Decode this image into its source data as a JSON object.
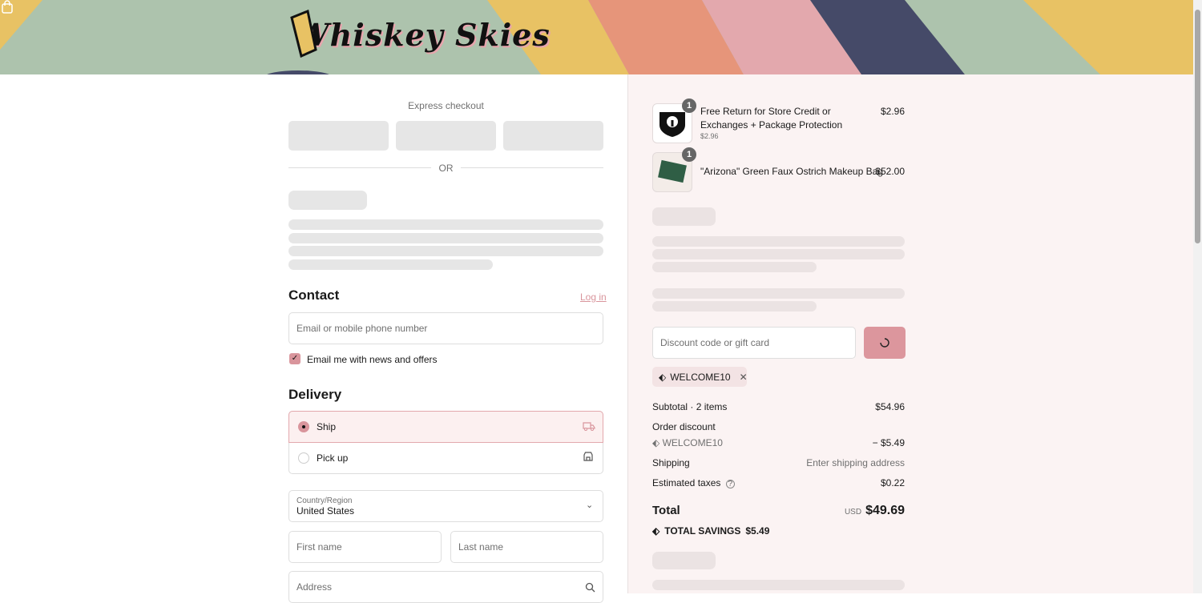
{
  "header": {
    "brand": "Whiskey Skies",
    "cart_icon": "shopping-bag-icon",
    "colors": {
      "sage": "#adc3ad",
      "yellow": "#e8c264",
      "salmon": "#e6957a",
      "pink": "#e3a8ad",
      "navy": "#454a68"
    }
  },
  "express": {
    "label": "Express checkout",
    "or": "OR"
  },
  "contact": {
    "title": "Contact",
    "login": "Log in",
    "email_placeholder": "Email or mobile phone number",
    "newsletter": "Email me with news and offers",
    "newsletter_checked": true
  },
  "delivery": {
    "title": "Delivery",
    "options": [
      {
        "label": "Ship",
        "selected": true,
        "icon": "truck-icon"
      },
      {
        "label": "Pick up",
        "selected": false,
        "icon": "store-icon"
      }
    ],
    "country_label": "Country/Region",
    "country_value": "United States",
    "first_name": "First name",
    "last_name": "Last name",
    "address": "Address"
  },
  "cart": {
    "items": [
      {
        "qty": "1",
        "name": "Free Return for Store Credit or Exchanges + Package Protection",
        "sub": "$2.96",
        "price": "$2.96"
      },
      {
        "qty": "1",
        "name": "\"Arizona\" Green Faux Ostrich Makeup Bag",
        "price": "$52.00"
      }
    ]
  },
  "discount": {
    "placeholder": "Discount code or gift card",
    "applied_code": "WELCOME10"
  },
  "summary": {
    "subtotal_label": "Subtotal · 2 items",
    "subtotal": "$54.96",
    "order_discount_label": "Order discount",
    "discount_code": "WELCOME10",
    "discount_value": "− $5.49",
    "shipping_label": "Shipping",
    "shipping_value": "Enter shipping address",
    "taxes_label": "Estimated taxes",
    "taxes_value": "$0.22",
    "total_label": "Total",
    "currency": "USD",
    "total": "$49.69",
    "savings_label": "TOTAL SAVINGS",
    "savings": "$5.49"
  },
  "accent": "#d9959c"
}
